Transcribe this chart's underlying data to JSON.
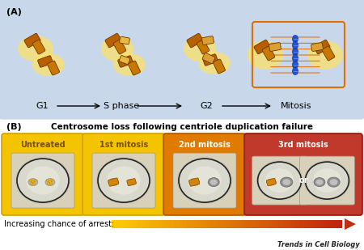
{
  "title_A": "(A)",
  "title_B": "(B)",
  "panel_A_bg": "#c8d8ea",
  "panel_B_title": "Centrosome loss following centriole duplication failure",
  "stage_labels_A": [
    "G1",
    "S phase",
    "G2",
    "Mitosis"
  ],
  "stage_labels_B": [
    "Untreated",
    "1st mitosis",
    "2nd mitosis",
    "3rd mitosis"
  ],
  "box_colors": [
    "#f5c400",
    "#f5c400",
    "#e07b00",
    "#c0392b"
  ],
  "box_edge_colors": [
    "#d4a800",
    "#d4a800",
    "#b85e00",
    "#8b1a0a"
  ],
  "arrest_label": "Increasing chance of arrest:",
  "trends_label": "Trends in Cell Biology",
  "bg_white": "#ffffff",
  "cell_bg": "#d8d0b8",
  "centriole_dark": "#b86000",
  "centriole_mid": "#d4860a",
  "centriole_light": "#e8c060",
  "glow_color": "#ffe060",
  "chrom_blue": "#2255cc",
  "spindle_orange": "#e06800",
  "mit_box_color": "#e07000"
}
